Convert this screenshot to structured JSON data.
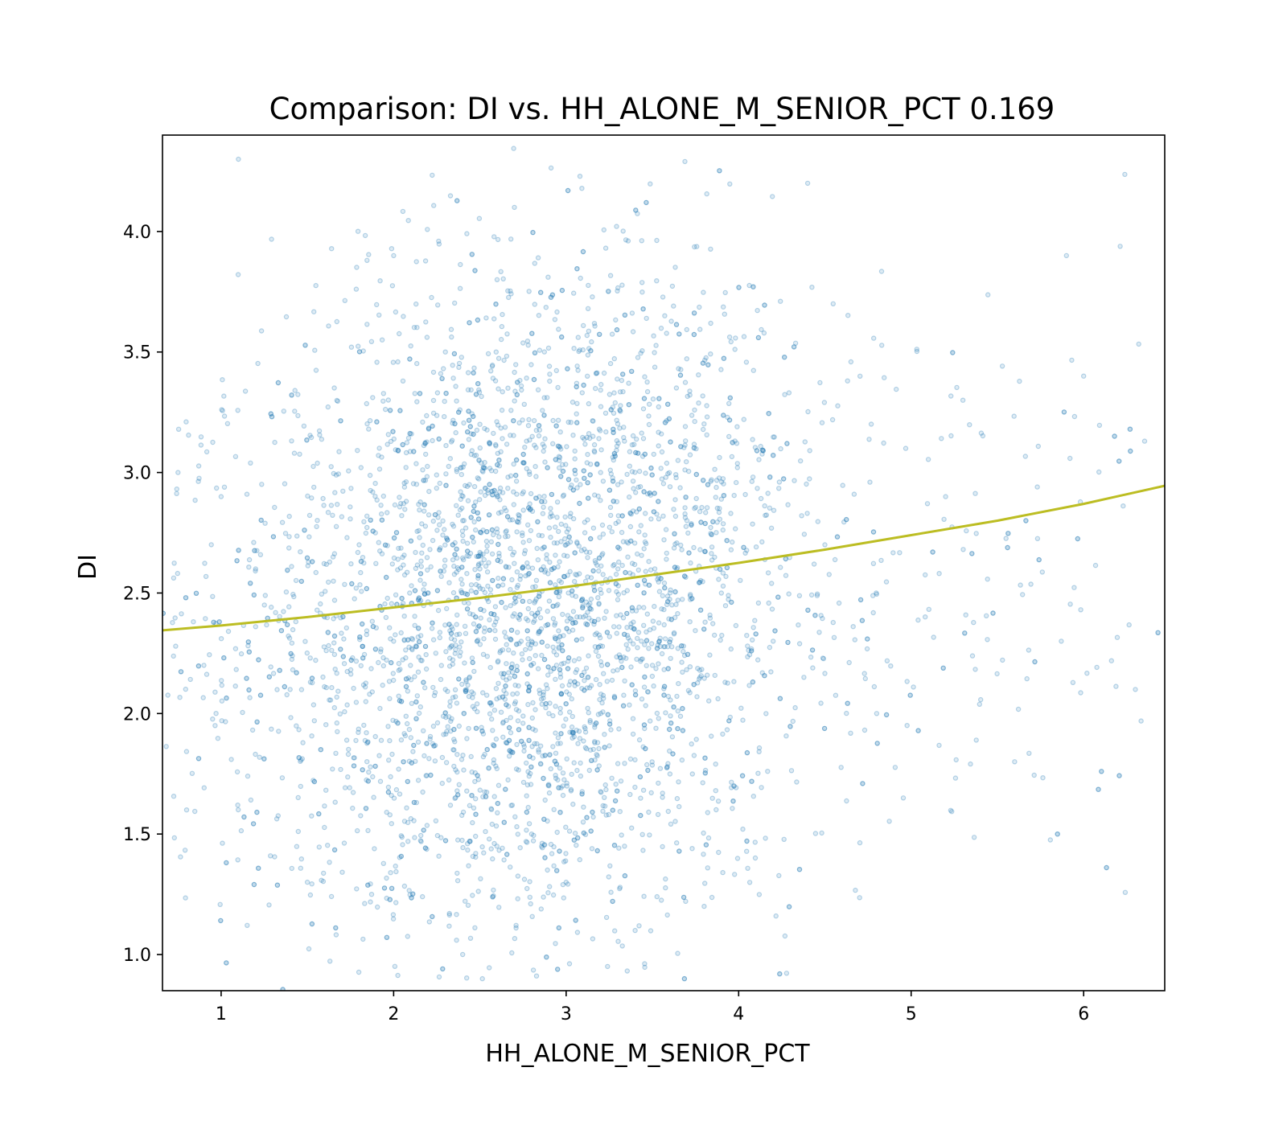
{
  "chart_data": {
    "type": "scatter",
    "title": "Comparison:  DI  vs.  HH_ALONE_M_SENIOR_PCT  0.169",
    "xlabel": "HH_ALONE_M_SENIOR_PCT",
    "ylabel": "DI",
    "xlim": [
      0.66,
      6.47
    ],
    "ylim": [
      0.85,
      4.4
    ],
    "xticks": [
      1,
      2,
      3,
      4,
      5,
      6
    ],
    "yticks": [
      1.0,
      1.5,
      2.0,
      2.5,
      3.0,
      3.5,
      4.0
    ],
    "xtick_labels": [
      "1",
      "2",
      "3",
      "4",
      "5",
      "6"
    ],
    "ytick_labels": [
      "1.0",
      "1.5",
      "2.0",
      "2.5",
      "3.0",
      "3.5",
      "4.0"
    ],
    "grid": false,
    "colors": {
      "points": "#1f77b4",
      "fit_line": "#bcbd22"
    },
    "series": [
      {
        "type": "scatter",
        "marker": "hollow-circle",
        "opacity": 0.3,
        "approx_point_count": 4000,
        "points": [
          [
            2.5,
            2.6
          ],
          [
            2.8,
            2.3
          ],
          [
            3.0,
            2.7
          ],
          [
            2.3,
            2.1
          ],
          [
            2.6,
            2.9
          ],
          [
            3.1,
            2.4
          ],
          [
            2.2,
            2.5
          ],
          [
            2.9,
            2.0
          ],
          [
            2.4,
            2.8
          ],
          [
            3.3,
            2.6
          ],
          [
            2.0,
            2.3
          ],
          [
            2.7,
            2.5
          ],
          [
            1.8,
            2.7
          ],
          [
            3.5,
            2.2
          ],
          [
            2.1,
            1.9
          ],
          [
            3.2,
            3.0
          ],
          [
            1.6,
            2.4
          ],
          [
            3.7,
            2.8
          ],
          [
            2.5,
            3.2
          ],
          [
            2.9,
            1.7
          ],
          [
            1.4,
            2.1
          ],
          [
            3.9,
            2.5
          ],
          [
            2.3,
            3.5
          ],
          [
            2.8,
            1.5
          ],
          [
            1.2,
            2.6
          ],
          [
            4.2,
            2.3
          ],
          [
            2.6,
            3.8
          ],
          [
            3.0,
            1.3
          ],
          [
            1.0,
            2.9
          ],
          [
            4.5,
            2.7
          ],
          [
            2.0,
            3.9
          ],
          [
            3.4,
            1.1
          ],
          [
            0.9,
            2.2
          ],
          [
            4.8,
            2.0
          ],
          [
            2.7,
            4.1
          ],
          [
            2.4,
            1.0
          ],
          [
            5.2,
            2.9
          ],
          [
            5.6,
            1.8
          ],
          [
            6.0,
            3.4
          ],
          [
            0.75,
            3.0
          ],
          [
            6.3,
            2.1
          ],
          [
            5.9,
            3.9
          ],
          [
            1.1,
            4.3
          ],
          [
            4.4,
            4.2
          ],
          [
            0.8,
            1.6
          ],
          [
            3.8,
            1.2
          ],
          [
            5.3,
            3.3
          ],
          [
            1.5,
            1.3
          ]
        ]
      },
      {
        "type": "line",
        "fit": "trend",
        "x": [
          0.66,
          1.0,
          1.5,
          2.0,
          2.5,
          3.0,
          3.5,
          4.0,
          4.5,
          5.0,
          5.5,
          6.0,
          6.47
        ],
        "y": [
          2.345,
          2.365,
          2.4,
          2.44,
          2.48,
          2.525,
          2.575,
          2.625,
          2.68,
          2.74,
          2.8,
          2.87,
          2.945
        ]
      }
    ]
  }
}
